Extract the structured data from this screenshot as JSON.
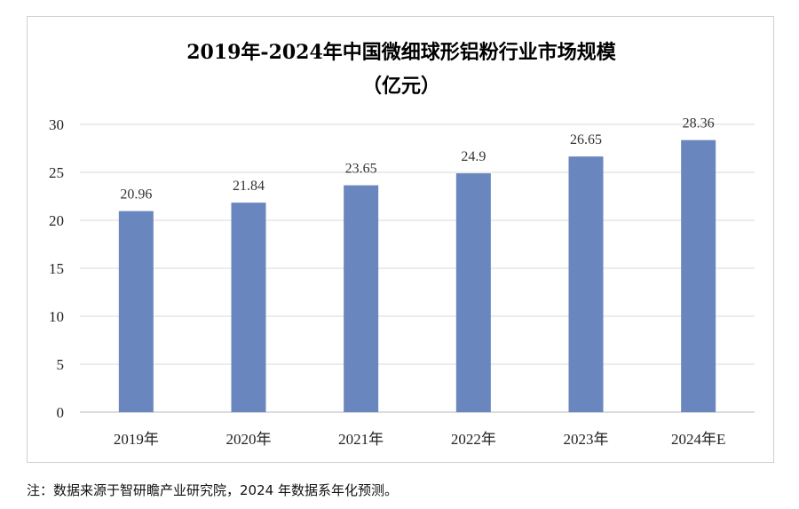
{
  "chart_data": {
    "type": "bar",
    "title": "2019年-2024年中国微细球形铝粉行业市场规模",
    "subtitle": "（亿元）",
    "categories": [
      "2019年",
      "2020年",
      "2021年",
      "2022年",
      "2023年",
      "2024年E"
    ],
    "values": [
      20.96,
      21.84,
      23.65,
      24.9,
      26.65,
      28.36
    ],
    "data_labels": [
      "20.96",
      "21.84",
      "23.65",
      "24.9",
      "26.65",
      "28.36"
    ],
    "ylim": [
      0,
      30
    ],
    "yticks": [
      0,
      5,
      10,
      15,
      20,
      25,
      30
    ],
    "xlabel": "",
    "ylabel": "",
    "grid": true,
    "bar_color": "#6a86be"
  },
  "footnote": "注：数据来源于智研瞻产业研究院，2024 年数据系年化预测。"
}
